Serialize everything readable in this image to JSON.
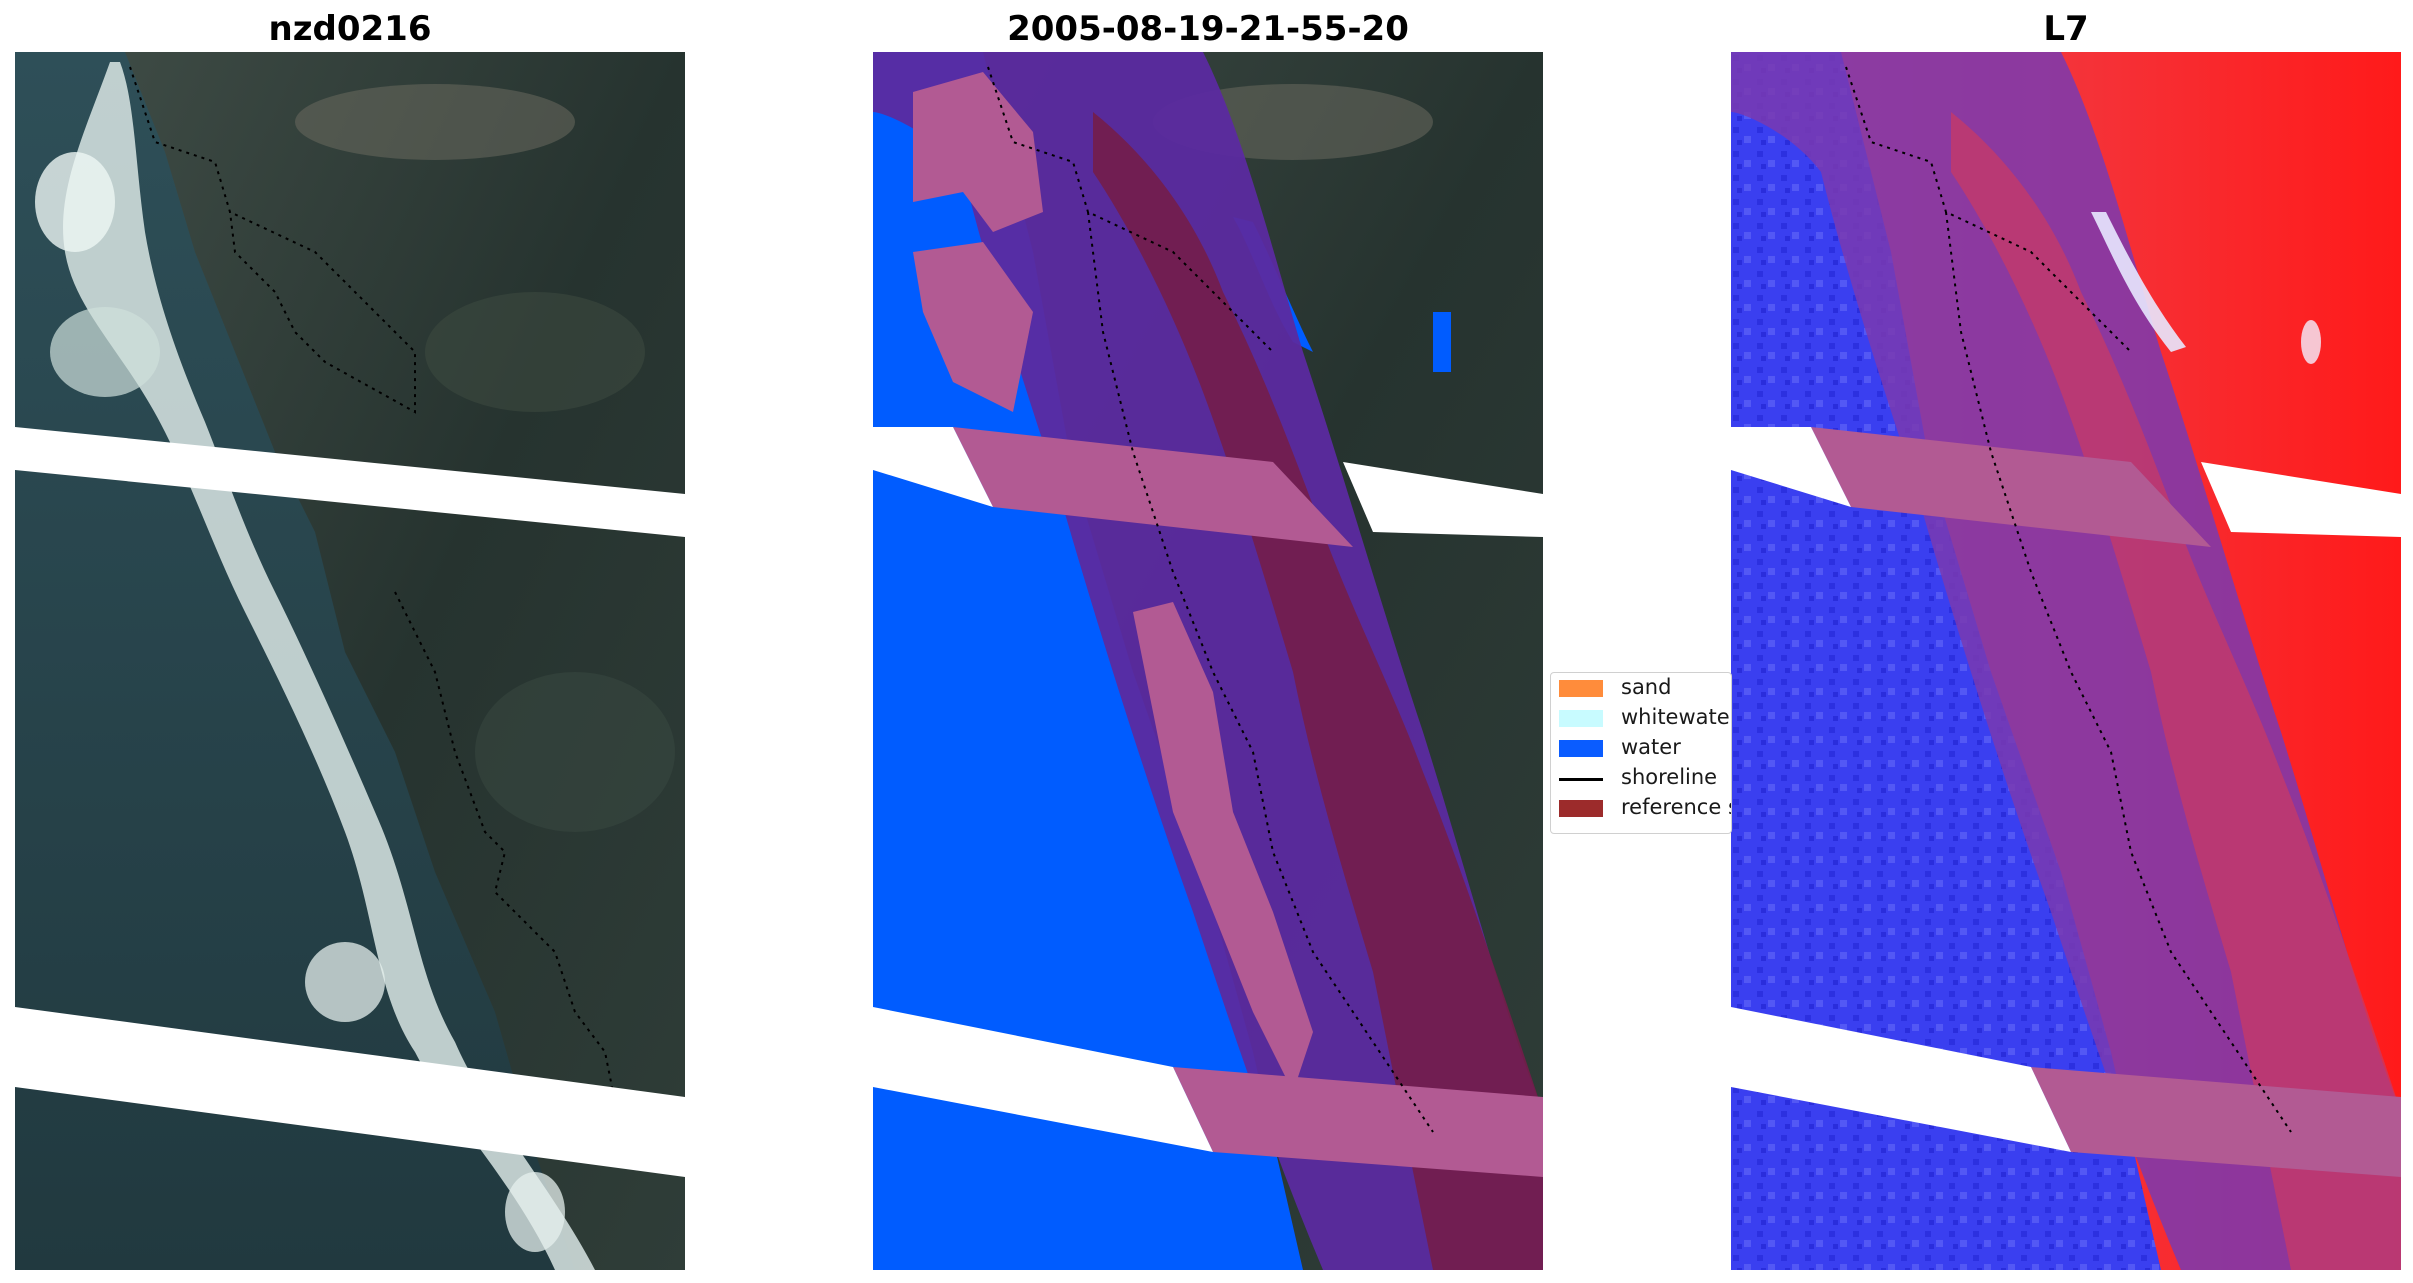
{
  "panels": [
    {
      "title": "nzd0216"
    },
    {
      "title": "2005-08-19-21-55-20"
    },
    {
      "title": "L7"
    }
  ],
  "legend": {
    "items": [
      {
        "label": "sand",
        "color": "#ff8c3b",
        "kind": "patch"
      },
      {
        "label": "whitewater",
        "color": "#c8fbff",
        "kind": "patch"
      },
      {
        "label": "water",
        "color": "#0a5cff",
        "kind": "patch"
      },
      {
        "label": "shoreline",
        "color": "#000000",
        "kind": "line"
      },
      {
        "label": "reference shoreline buffer",
        "color": "#9c2b2b",
        "kind": "patch"
      }
    ]
  },
  "colors": {
    "land_dark": "#2c3a33",
    "ocean_dark": "#294750",
    "surf_white": "#d9e6e4",
    "water_class": "#005cff",
    "buffer_pink": "#b25a93",
    "buffer_purple": "#5b2aa0",
    "buffer_maroon": "#741d4a",
    "index_red": "#f02026",
    "index_blue": "#2730e8",
    "index_purple": "#7a3ab0"
  }
}
